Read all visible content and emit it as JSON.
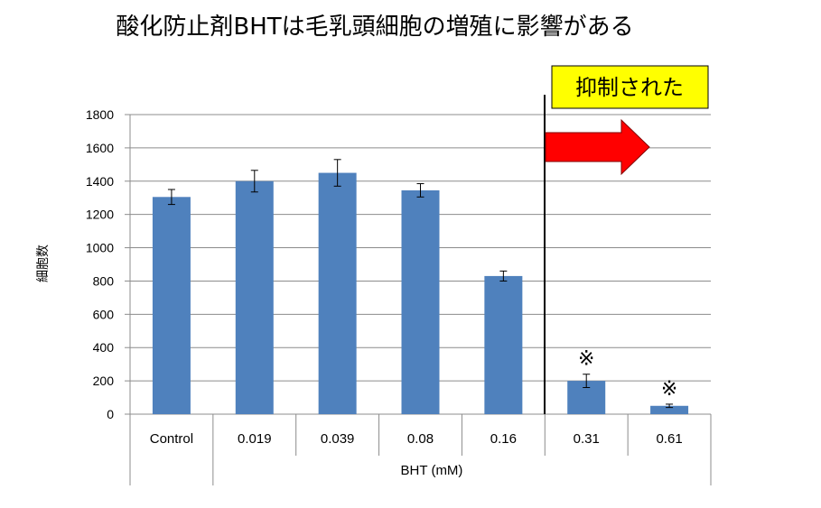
{
  "chart_data": {
    "type": "bar",
    "title": "酸化防止剤BHTは毛乳頭細胞の増殖に影響がある",
    "xlabel": "BHT (mM)",
    "ylabel": "細胞数",
    "categories": [
      "Control",
      "0.019",
      "0.039",
      "0.08",
      "0.16",
      "0.31",
      "0.61"
    ],
    "values": [
      1305,
      1400,
      1450,
      1345,
      830,
      200,
      50
    ],
    "errors": [
      45,
      65,
      80,
      40,
      30,
      40,
      10
    ],
    "ylim": [
      0,
      1800
    ],
    "yticks": [
      "0",
      "200",
      "400",
      "600",
      "800",
      "1000",
      "1200",
      "1400",
      "1600",
      "1800"
    ],
    "grid": true,
    "bar_color": "#4f81bd",
    "annotations": {
      "callout_text": "抑制された",
      "callout_fill": "#ffff00",
      "arrow_color": "#ff0000",
      "significance_mark": "※",
      "marked_categories": [
        "0.31",
        "0.61"
      ]
    }
  }
}
